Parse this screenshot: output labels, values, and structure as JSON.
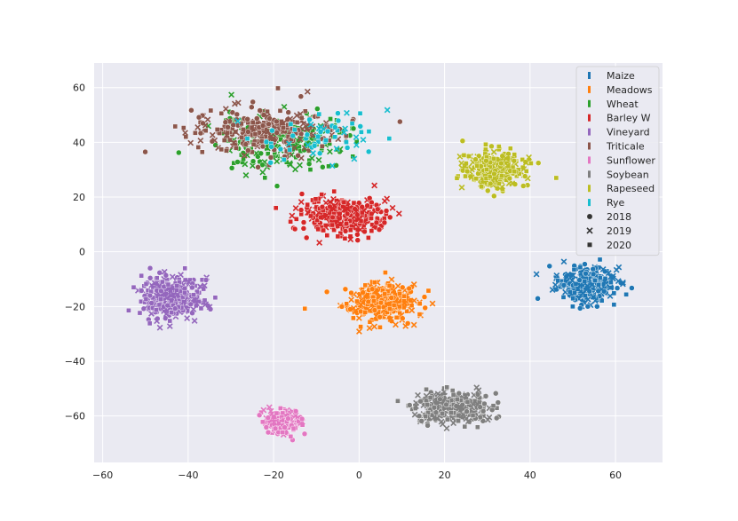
{
  "chart_data": {
    "type": "scatter",
    "title": "",
    "xlabel": "",
    "ylabel": "",
    "xlim": [
      -62,
      71
    ],
    "ylim": [
      -77,
      69
    ],
    "xticks": [
      -60,
      -40,
      -20,
      0,
      20,
      40,
      60
    ],
    "yticks": [
      60,
      40,
      20,
      0,
      -20,
      -40,
      -60
    ],
    "xtick_labels": [
      "−60",
      "−40",
      "−20",
      "0",
      "20",
      "40",
      "60"
    ],
    "ytick_labels": [
      "60",
      "40",
      "20",
      "0",
      "−20",
      "−40",
      "−60"
    ],
    "grid": true,
    "background": "#eaeaf2",
    "legend_position": "top-right",
    "hue_legend": [
      {
        "name": "Maize",
        "color": "#1f77b4"
      },
      {
        "name": "Meadows",
        "color": "#ff7f0e"
      },
      {
        "name": "Wheat",
        "color": "#2ca02c"
      },
      {
        "name": "Barley W",
        "color": "#d62728"
      },
      {
        "name": "Vineyard",
        "color": "#9467bd"
      },
      {
        "name": "Triticale",
        "color": "#8c564b"
      },
      {
        "name": "Sunflower",
        "color": "#e377c2"
      },
      {
        "name": "Soybean",
        "color": "#7f7f7f"
      },
      {
        "name": "Rapeseed",
        "color": "#bcbd22"
      },
      {
        "name": "Rye",
        "color": "#17becf"
      }
    ],
    "style_legend": [
      {
        "name": "2018",
        "marker": "circle"
      },
      {
        "name": "2019",
        "marker": "x"
      },
      {
        "name": "2020",
        "marker": "square"
      }
    ],
    "clusters": [
      {
        "class": "Maize",
        "center": [
          53,
          -12
        ],
        "spread": [
          6,
          6
        ],
        "count": 300
      },
      {
        "class": "Meadows",
        "center": [
          5,
          -18
        ],
        "spread": [
          8,
          6
        ],
        "count": 320
      },
      {
        "class": "Wheat",
        "center": [
          -18,
          40
        ],
        "spread": [
          14,
          9
        ],
        "count": 220
      },
      {
        "class": "Barley W",
        "center": [
          -3,
          13
        ],
        "spread": [
          9,
          6
        ],
        "count": 320
      },
      {
        "class": "Vineyard",
        "center": [
          -44,
          -17
        ],
        "spread": [
          6,
          7
        ],
        "count": 420
      },
      {
        "class": "Triticale",
        "center": [
          -22,
          44
        ],
        "spread": [
          15,
          8
        ],
        "count": 280
      },
      {
        "class": "Sunflower",
        "center": [
          -18,
          -62
        ],
        "spread": [
          4,
          4
        ],
        "count": 180
      },
      {
        "class": "Soybean",
        "center": [
          22,
          -57
        ],
        "spread": [
          8,
          5
        ],
        "count": 360
      },
      {
        "class": "Rapeseed",
        "center": [
          32,
          30
        ],
        "spread": [
          6,
          6
        ],
        "count": 300
      },
      {
        "class": "Rye",
        "center": [
          -10,
          42
        ],
        "spread": [
          16,
          8
        ],
        "count": 60
      }
    ]
  }
}
